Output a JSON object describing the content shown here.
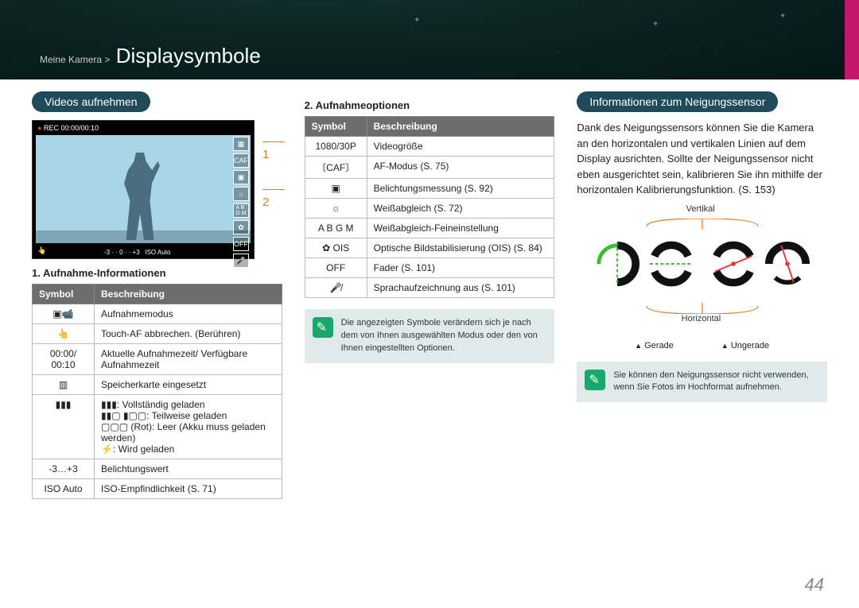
{
  "breadcrumb": {
    "section": "Meine Kamera >",
    "title": "Displaysymbole"
  },
  "col1": {
    "pill": "Videos aufnehmen",
    "callout1": "1",
    "callout2": "2",
    "rec_time": "00:00/00:10",
    "subhead": "1. Aufnahme-Informationen",
    "th_symbol": "Symbol",
    "th_desc": "Beschreibung",
    "rows": [
      {
        "sym": "▣📹",
        "desc": "Aufnahmemodus"
      },
      {
        "sym": "👆",
        "desc": "Touch-AF abbrechen. (Berühren)"
      },
      {
        "sym": "00:00/ 00:10",
        "desc": "Aktuelle Aufnahmezeit/ Verfügbare Aufnahmezeit"
      },
      {
        "sym": "▥",
        "desc": "Speicherkarte eingesetzt"
      },
      {
        "sym": "▮▮▮",
        "desc": "▮▮▮: Vollständig geladen\n▮▮▢ ▮▢▢: Teilweise geladen\n▢▢▢ (Rot): Leer (Akku muss geladen werden)\n⚡: Wird geladen"
      },
      {
        "sym": "-3…+3",
        "desc": "Belichtungswert"
      },
      {
        "sym": "ISO Auto",
        "desc": "ISO-Empfindlichkeit (S. 71)"
      }
    ]
  },
  "col2": {
    "subhead": "2. Aufnahmeoptionen",
    "th_symbol": "Symbol",
    "th_desc": "Beschreibung",
    "rows": [
      {
        "sym": "1080/30P",
        "desc": "Videogröße"
      },
      {
        "sym": "〔CAF〕",
        "desc": "AF-Modus (S. 75)"
      },
      {
        "sym": "▣",
        "desc": "Belichtungsmessung (S. 92)"
      },
      {
        "sym": "☼",
        "desc": "Weißabgleich (S. 72)"
      },
      {
        "sym": "A B\nG M",
        "desc": "Weißabgleich-Feineinstellung"
      },
      {
        "sym": "✿ OIS",
        "desc": "Optische Bildstabilisierung (OIS) (S. 84)"
      },
      {
        "sym": "OFF",
        "desc": "Fader (S. 101)"
      },
      {
        "sym": "🎤̸",
        "desc": "Sprachaufzeichnung aus (S. 101)"
      }
    ],
    "note": "Die angezeigten Symbole verändern sich je nach dem von Ihnen ausgewählten Modus oder den von Ihnen eingestellten Optionen."
  },
  "col3": {
    "pill": "Informationen zum Neigungssensor",
    "para": "Dank des Neigungssensors können Sie die Kamera an den horizontalen und vertikalen Linien auf dem Display ausrichten. Sollte der Neigungssensor nicht eben ausgerichtet sein, kalibrieren Sie ihn mithilfe der horizontalen Kalibrierungsfunktion. (S. 153)",
    "lbl_vertical": "Vertikal",
    "lbl_horizontal": "Horizontal",
    "legend_even": "Gerade",
    "legend_uneven": "Ungerade",
    "note": "Sie können den Neigungssensor nicht verwenden, wenn Sie Fotos im Hochformat aufnehmen."
  },
  "page_number": "44",
  "colors": {
    "pill": "#1e4a5a",
    "accent": "#e67e22",
    "noteIcon": "#17a86b",
    "green": "#3bbf2e",
    "red": "#e43b3b"
  }
}
